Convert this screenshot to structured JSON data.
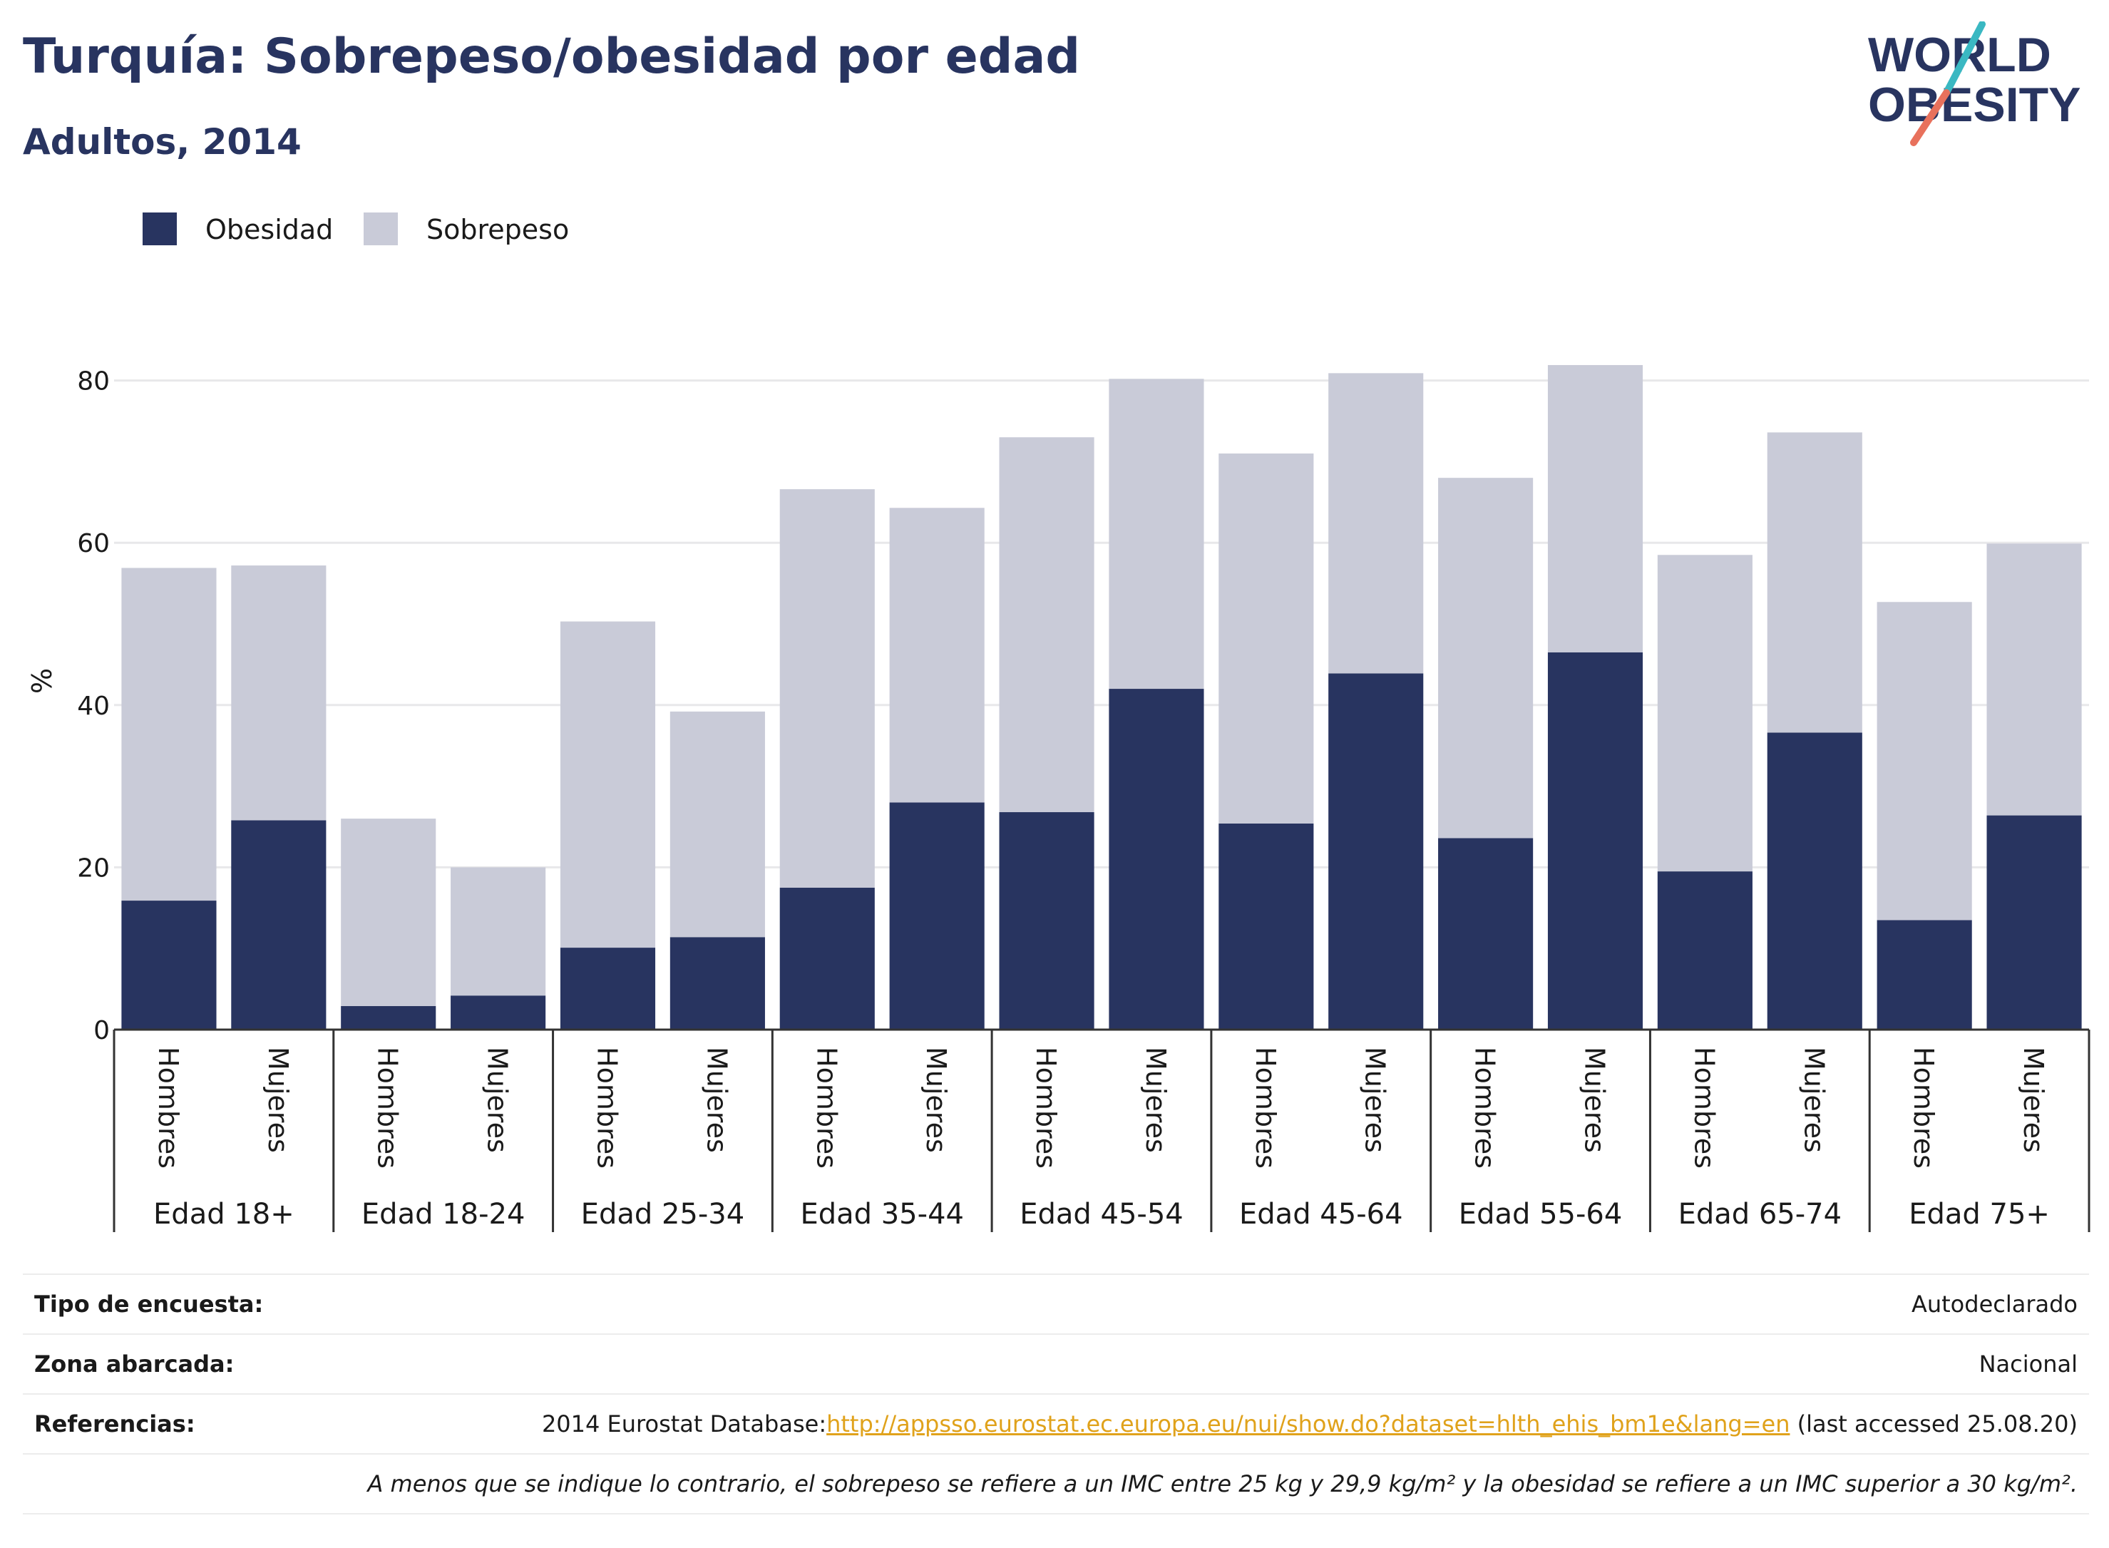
{
  "header": {
    "title": "Turquía: Sobrepeso/obesidad por edad",
    "subtitle": "Adultos, 2014"
  },
  "logo": {
    "line1": "WORLD",
    "line2": "OBESITY"
  },
  "legend": {
    "items": [
      {
        "label": "Obesidad",
        "color": "#283460"
      },
      {
        "label": "Sobrepeso",
        "color": "#c9cbd8"
      }
    ]
  },
  "chart_data": {
    "type": "bar",
    "stacked": true,
    "ylabel": "%",
    "ylim": [
      0,
      90
    ],
    "yticks": [
      0,
      20,
      40,
      60,
      80
    ],
    "grid": true,
    "legend_position": "top-left",
    "group_labels": [
      "Edad 18+",
      "Edad 18-24",
      "Edad 25-34",
      "Edad 35-44",
      "Edad 45-54",
      "Edad 45-64",
      "Edad 55-64",
      "Edad 65-74",
      "Edad 75+"
    ],
    "sub_labels": [
      "Hombres",
      "Mujeres"
    ],
    "series": [
      {
        "name": "Obesidad",
        "color": "#283460",
        "values": [
          15.9,
          25.8,
          2.9,
          4.2,
          10.1,
          11.4,
          17.5,
          28.0,
          26.8,
          42.0,
          25.4,
          43.9,
          23.6,
          46.5,
          19.5,
          36.6,
          13.5,
          26.4
        ]
      },
      {
        "name": "Sobrepeso",
        "color": "#c9cbd8",
        "values": [
          41.0,
          31.4,
          23.1,
          15.8,
          40.2,
          27.8,
          49.1,
          36.3,
          46.2,
          38.2,
          45.6,
          37.0,
          44.4,
          35.4,
          39.0,
          37.0,
          39.2,
          33.5
        ]
      }
    ]
  },
  "footer": {
    "survey_type_label": "Tipo de encuesta:",
    "survey_type_value": "Autodeclarado",
    "coverage_label": "Zona abarcada:",
    "coverage_value": "Nacional",
    "references_label": "Referencias:",
    "references_prefix": "2014 Eurostat Database:",
    "references_link": "http://appsso.eurostat.ec.europa.eu/nui/show.do?dataset=hlth_ehis_bm1e&lang=en",
    "references_suffix": " (last accessed 25.08.20)",
    "note": "A menos que se indique lo contrario, el sobrepeso se refiere a un IMC entre 25 kg y 29,9 kg/m² y la obesidad se refiere a un IMC superior a 30 kg/m²."
  }
}
